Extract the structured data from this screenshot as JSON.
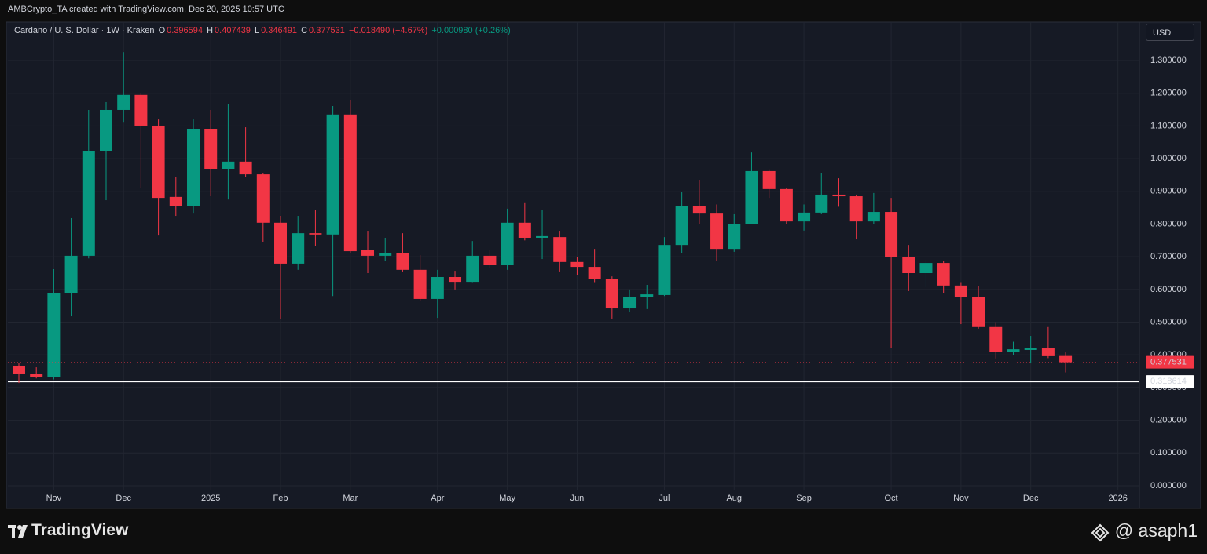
{
  "header": {
    "attribution": "AMBCrypto_TA created with TradingView.com, Dec 20, 2025 10:57 UTC",
    "symbol": "Cardano / U. S. Dollar · 1W · Kraken",
    "keys": [
      "O",
      "H",
      "L",
      "C"
    ],
    "change": "−0.018490 (−4.67%)",
    "change_after": "+0.000980 (+0.26%)",
    "currency": "USD"
  },
  "footer": {
    "brand": "TradingView",
    "watermark": "@ asaph1"
  },
  "chart_data": {
    "type": "candlestick",
    "open": [
      0.367,
      0.341,
      0.331,
      0.59,
      0.703,
      1.022,
      1.149,
      1.195,
      1.101,
      0.883,
      0.856,
      1.089,
      0.967,
      0.991,
      0.952,
      0.804,
      0.679,
      0.772,
      0.768,
      1.135,
      0.72,
      0.703,
      0.71,
      0.66,
      0.571,
      0.638,
      0.621,
      0.703,
      0.674,
      0.804,
      0.758,
      0.76,
      0.684,
      0.669,
      0.633,
      0.542,
      0.578,
      0.583,
      0.736,
      0.856,
      0.832,
      0.724,
      0.801,
      0.962,
      0.907,
      0.808,
      0.835,
      0.89,
      0.885,
      0.808,
      0.837,
      0.7,
      0.65,
      0.681,
      0.612,
      0.578,
      0.485,
      0.408,
      0.415,
      0.42,
      0.396594
    ],
    "high": [
      0.376,
      0.362,
      0.662,
      0.818,
      1.149,
      1.173,
      1.326,
      1.2,
      1.12,
      0.945,
      1.12,
      1.149,
      1.166,
      1.096,
      0.955,
      0.825,
      0.825,
      0.842,
      1.161,
      1.178,
      0.777,
      0.758,
      0.772,
      0.705,
      0.66,
      0.657,
      0.748,
      0.722,
      0.847,
      0.864,
      0.842,
      0.777,
      0.7,
      0.724,
      0.64,
      0.6,
      0.614,
      0.76,
      0.897,
      0.933,
      0.86,
      0.83,
      1.019,
      0.965,
      0.91,
      0.86,
      0.955,
      0.94,
      0.89,
      0.895,
      0.88,
      0.736,
      0.69,
      0.686,
      0.62,
      0.61,
      0.5,
      0.44,
      0.458,
      0.485,
      0.407439
    ],
    "low": [
      0.314,
      0.328,
      0.325,
      0.518,
      0.695,
      0.873,
      1.11,
      0.909,
      0.765,
      0.825,
      0.832,
      0.885,
      0.875,
      0.945,
      0.746,
      0.511,
      0.66,
      0.734,
      0.58,
      0.71,
      0.65,
      0.688,
      0.655,
      0.565,
      0.513,
      0.6,
      0.62,
      0.665,
      0.66,
      0.75,
      0.693,
      0.655,
      0.645,
      0.62,
      0.511,
      0.53,
      0.54,
      0.58,
      0.71,
      0.8,
      0.686,
      0.715,
      0.8,
      0.88,
      0.8,
      0.78,
      0.83,
      0.853,
      0.753,
      0.8,
      0.42,
      0.595,
      0.607,
      0.59,
      0.494,
      0.48,
      0.389,
      0.4,
      0.374,
      0.39,
      0.346491
    ],
    "close": [
      0.343,
      0.333,
      0.59,
      0.703,
      1.024,
      1.149,
      1.195,
      1.101,
      0.88,
      0.856,
      1.089,
      0.967,
      0.991,
      0.952,
      0.804,
      0.679,
      0.772,
      0.768,
      1.135,
      0.717,
      0.703,
      0.71,
      0.66,
      0.571,
      0.638,
      0.621,
      0.703,
      0.674,
      0.804,
      0.758,
      0.763,
      0.684,
      0.669,
      0.633,
      0.542,
      0.578,
      0.585,
      0.736,
      0.856,
      0.832,
      0.724,
      0.801,
      0.962,
      0.907,
      0.808,
      0.835,
      0.89,
      0.885,
      0.808,
      0.837,
      0.7,
      0.65,
      0.681,
      0.612,
      0.578,
      0.485,
      0.41,
      0.417,
      0.42,
      0.396,
      0.377531
    ],
    "up_color": "#089981",
    "down_color": "#f23645",
    "xlim": [
      -0.63,
      64.23
    ],
    "xticks": [
      {
        "value": 2,
        "label": "Nov"
      },
      {
        "value": 6,
        "label": "Dec"
      },
      {
        "value": 11,
        "label": "2025"
      },
      {
        "value": 15,
        "label": "Feb"
      },
      {
        "value": 19,
        "label": "Mar"
      },
      {
        "value": 24,
        "label": "Apr"
      },
      {
        "value": 28,
        "label": "May"
      },
      {
        "value": 32,
        "label": "Jun"
      },
      {
        "value": 37,
        "label": "Jul"
      },
      {
        "value": 41,
        "label": "Aug"
      },
      {
        "value": 45,
        "label": "Sep"
      },
      {
        "value": 50,
        "label": "Oct"
      },
      {
        "value": 54,
        "label": "Nov"
      },
      {
        "value": 58,
        "label": "Dec"
      },
      {
        "value": 63,
        "label": "2026"
      }
    ],
    "ylim": [
      -0.0696,
      1.4176
    ],
    "yticks": [
      {
        "value": 0,
        "label": "0.000000"
      },
      {
        "value": 0.1,
        "label": "0.100000"
      },
      {
        "value": 0.2,
        "label": "0.200000"
      },
      {
        "value": 0.3,
        "label": "0.300000"
      },
      {
        "value": 0.4,
        "label": "0.400000"
      },
      {
        "value": 0.5,
        "label": "0.500000"
      },
      {
        "value": 0.6,
        "label": "0.600000"
      },
      {
        "value": 0.7,
        "label": "0.700000"
      },
      {
        "value": 0.8,
        "label": "0.800000"
      },
      {
        "value": 0.9,
        "label": "0.900000"
      },
      {
        "value": 1.0,
        "label": "1.000000"
      },
      {
        "value": 1.1,
        "label": "1.100000"
      },
      {
        "value": 1.2,
        "label": "1.200000"
      },
      {
        "value": 1.3,
        "label": "1.300000"
      }
    ],
    "grid": true,
    "hline": {
      "value": 0.318614,
      "color": "#ffffff"
    }
  }
}
